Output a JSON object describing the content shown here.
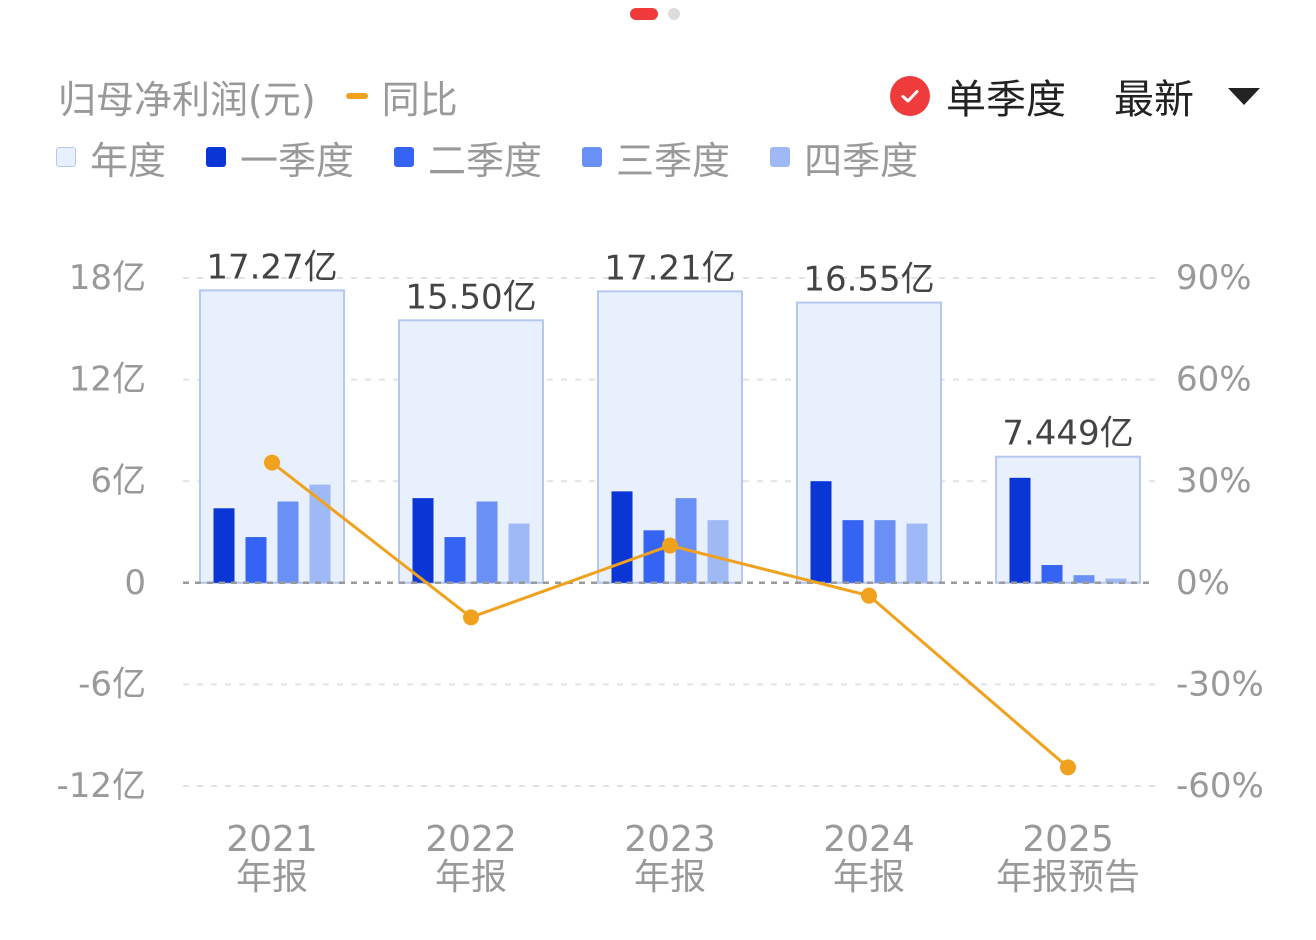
{
  "header": {
    "metric_label": "归母净利润(元)",
    "yoy_label": "同比",
    "single_quarter_label": "单季度",
    "sort_label": "最新"
  },
  "legend": [
    {
      "label": "年度",
      "color": "#e8effd"
    },
    {
      "label": "一季度",
      "color": "#0a36d6"
    },
    {
      "label": "二季度",
      "color": "#3563f4"
    },
    {
      "label": "三季度",
      "color": "#6a90f5"
    },
    {
      "label": "四季度",
      "color": "#9fb9f7"
    }
  ],
  "colors": {
    "accent": "#ef3b3b",
    "yoy_line": "#f0a21e",
    "annual_fill": "#e8effd",
    "annual_border": "#b5c8f0",
    "axis_text": "#999999"
  },
  "chart_data": {
    "type": "bar",
    "categories": [
      "2021 年报",
      "2022 年报",
      "2023 年报",
      "2024 年报",
      "2025 年报预告"
    ],
    "category_lines": [
      [
        "2021",
        "年报"
      ],
      [
        "2022",
        "年报"
      ],
      [
        "2023",
        "年报"
      ],
      [
        "2024",
        "年报"
      ],
      [
        "2025",
        "年报预告"
      ]
    ],
    "annual": {
      "values": [
        17.27,
        15.5,
        17.21,
        16.55,
        7.449
      ],
      "labels": [
        "17.27亿",
        "15.50亿",
        "17.21亿",
        "16.55亿",
        "7.449亿"
      ]
    },
    "series": [
      {
        "name": "一季度",
        "values": [
          4.4,
          5.0,
          5.4,
          6.0,
          6.2
        ]
      },
      {
        "name": "二季度",
        "values": [
          2.7,
          2.7,
          3.1,
          3.7,
          1.05
        ]
      },
      {
        "name": "三季度",
        "values": [
          4.8,
          4.8,
          5.0,
          3.7,
          0.45
        ]
      },
      {
        "name": "四季度",
        "values": [
          5.8,
          3.5,
          3.7,
          3.5,
          0.25
        ]
      }
    ],
    "yoy": {
      "name": "同比",
      "values": [
        35.5,
        -10.2,
        11.0,
        -3.8,
        -54.5
      ]
    },
    "y_left": {
      "ticks": [
        18,
        12,
        6,
        0,
        -6,
        -12
      ],
      "tick_labels": [
        "18亿",
        "12亿",
        "6亿",
        "0",
        "-6亿",
        "-12亿"
      ],
      "range": [
        -12,
        18
      ],
      "unit": "亿元"
    },
    "y_right": {
      "ticks": [
        90,
        60,
        30,
        0,
        -30,
        -60
      ],
      "tick_labels": [
        "90%",
        "60%",
        "30%",
        "0%",
        "-30%",
        "-60%"
      ],
      "range": [
        -60,
        90
      ],
      "unit": "%"
    },
    "grid": true
  }
}
